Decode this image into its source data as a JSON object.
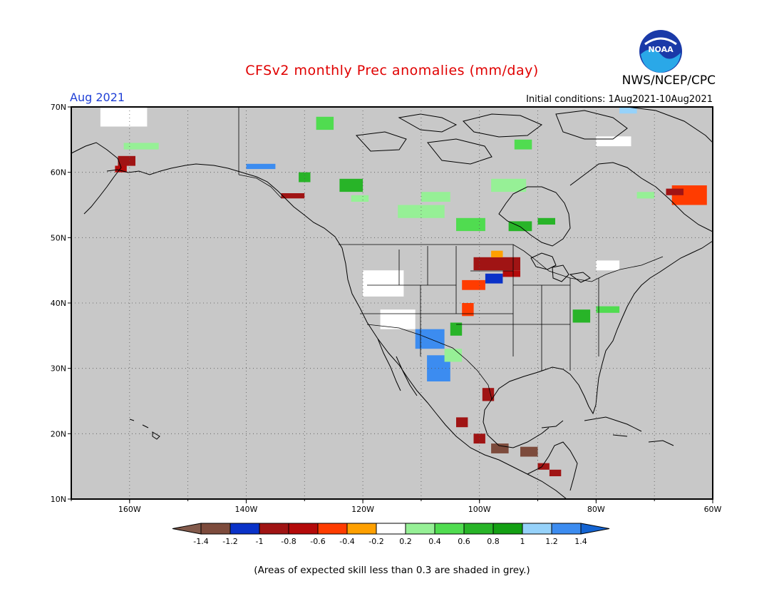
{
  "header": {
    "title": "CFSv2 monthly Prec anomalies (mm/day)",
    "org": "NWS/NCEP/CPC",
    "month": "Aug 2021",
    "initial_conditions": "Initial conditions: 1Aug2021-10Aug2021"
  },
  "footer": {
    "note": "(Areas of expected skill less than 0.3 are shaded in grey.)"
  },
  "logo": {
    "icon": "noaa-logo-icon",
    "text": "NOAA"
  },
  "map": {
    "lon_range": [
      -170,
      -60
    ],
    "lat_range": [
      10,
      70
    ],
    "lon_ticks": [
      "160W",
      "140W",
      "120W",
      "100W",
      "80W",
      "60W"
    ],
    "lat_ticks": [
      "70N",
      "60N",
      "50N",
      "40N",
      "30N",
      "20N",
      "10N"
    ],
    "grid": "dotted",
    "background_color": "#c8c8c8"
  },
  "colorbar": {
    "labels": [
      "-1.4",
      "-1.2",
      "-1",
      "-0.8",
      "-0.6",
      "-0.4",
      "-0.2",
      "0.2",
      "0.4",
      "0.6",
      "0.8",
      "1",
      "1.2",
      "1.4"
    ],
    "colors": [
      "#825a4b",
      "#7d4b3c",
      "#0a32c8",
      "#a01414",
      "#b40a0a",
      "#ff3c00",
      "#ffa000",
      "#ffffff",
      "#96f096",
      "#50dc50",
      "#28b428",
      "#14a014",
      "#96d2fa",
      "#3c8cf0",
      "#1464d2"
    ]
  }
}
